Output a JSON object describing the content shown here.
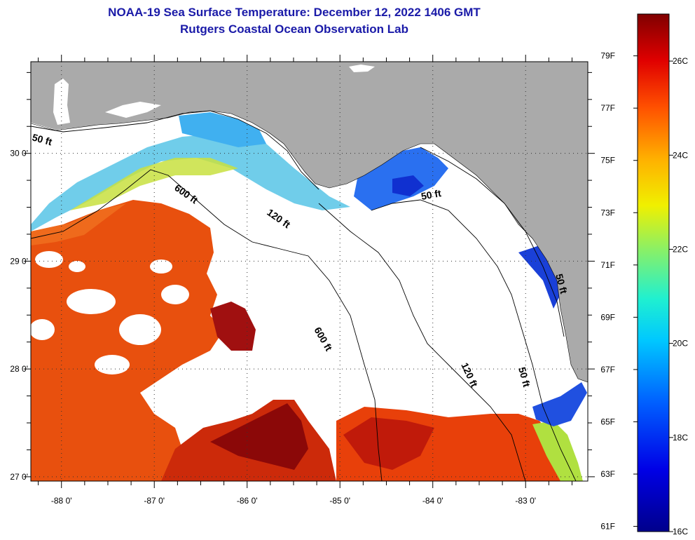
{
  "title": {
    "line1": "NOAA-19 Sea Surface Temperature:  December 12, 2022 1406 GMT",
    "line2": "Rutgers Coastal Ocean Observation Lab"
  },
  "map": {
    "lon_labels": [
      "-88 0'",
      "-87 0'",
      "-86 0'",
      "-85 0'",
      "-84 0'",
      "-83 0'"
    ],
    "lon_values": [
      -88,
      -87,
      -86,
      -85,
      -84,
      -83
    ],
    "lat_labels": [
      "30 0'",
      "29 0'",
      "28 0'",
      "27 0'"
    ],
    "lat_values": [
      30,
      29,
      28,
      27
    ],
    "lon_range": [
      -88.33,
      -82.33
    ],
    "lat_range": [
      26.96,
      30.85
    ],
    "contour_labels": [
      "50 ft",
      "600 ft",
      "120 ft",
      "50 ft",
      "600 ft",
      "120 ft",
      "50 ft",
      "50 ft"
    ],
    "colors": {
      "land": "#aaaaaa",
      "cloud": "#ffffff",
      "warm": "#e8400a",
      "hot": "#8b0000",
      "cool": "#2aa0f0",
      "cold": "#0a20c8"
    }
  },
  "colorbar": {
    "f_labels": [
      "79F",
      "77F",
      "75F",
      "73F",
      "71F",
      "69F",
      "67F",
      "65F",
      "63F",
      "61F"
    ],
    "f_values": [
      79,
      77,
      75,
      73,
      71,
      69,
      67,
      65,
      63,
      61
    ],
    "c_labels": [
      "26C",
      "24C",
      "22C",
      "20C",
      "18C",
      "16C"
    ],
    "c_values": [
      26,
      24,
      22,
      20,
      18,
      16
    ],
    "range_f": [
      60.8,
      80.6
    ]
  }
}
